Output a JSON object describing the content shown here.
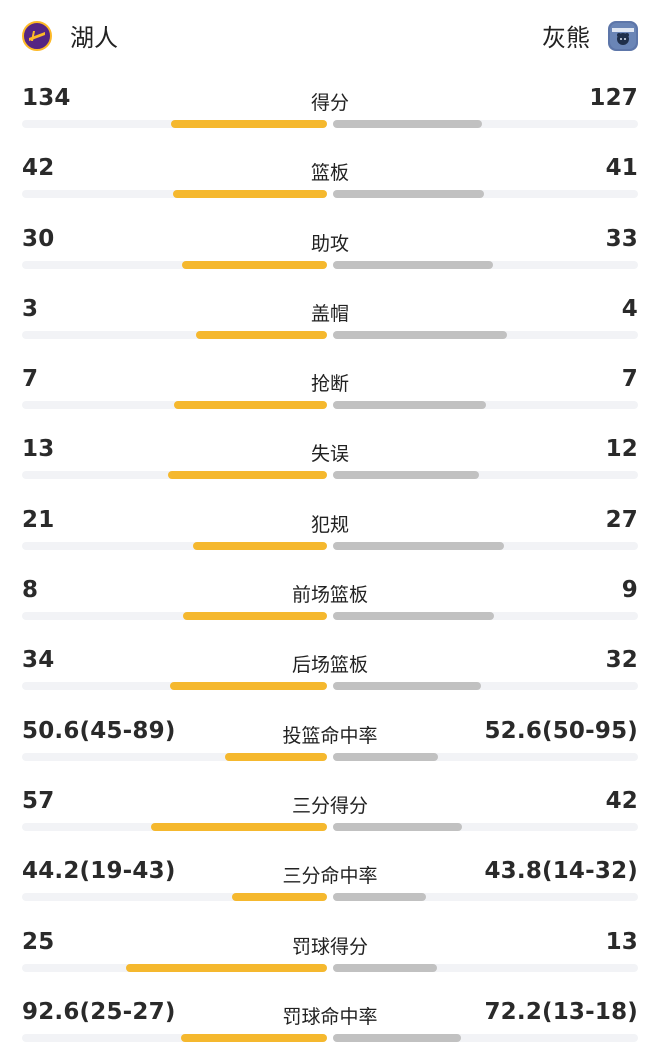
{
  "header": {
    "home": {
      "name": "湖人",
      "logo_icon": "lakers-logo-icon",
      "color": "#552583"
    },
    "away": {
      "name": "灰熊",
      "logo_icon": "grizzlies-logo-icon",
      "color": "#5d76a9"
    }
  },
  "colors": {
    "home_bar": "#f5b82e",
    "away_bar": "#c1c1c1",
    "track": "#f2f3f6"
  },
  "stats": [
    {
      "label": "得分",
      "home": "134",
      "away": "127",
      "home_fill": 0.51,
      "away_fill": 0.49
    },
    {
      "label": "篮板",
      "home": "42",
      "away": "41",
      "home_fill": 0.505,
      "away_fill": 0.495
    },
    {
      "label": "助攻",
      "home": "30",
      "away": "33",
      "home_fill": 0.476,
      "away_fill": 0.524
    },
    {
      "label": "盖帽",
      "home": "3",
      "away": "4",
      "home_fill": 0.429,
      "away_fill": 0.571
    },
    {
      "label": "抢断",
      "home": "7",
      "away": "7",
      "home_fill": 0.5,
      "away_fill": 0.5
    },
    {
      "label": "失误",
      "home": "13",
      "away": "12",
      "home_fill": 0.52,
      "away_fill": 0.48
    },
    {
      "label": "犯规",
      "home": "21",
      "away": "27",
      "home_fill": 0.438,
      "away_fill": 0.562
    },
    {
      "label": "前场篮板",
      "home": "8",
      "away": "9",
      "home_fill": 0.471,
      "away_fill": 0.529
    },
    {
      "label": "后场篮板",
      "home": "34",
      "away": "32",
      "home_fill": 0.515,
      "away_fill": 0.485
    },
    {
      "label": "投篮命中率",
      "home": "50.6(45-89)",
      "away": "52.6(50-95)",
      "home_fill": 0.335,
      "away_fill": 0.345
    },
    {
      "label": "三分得分",
      "home": "57",
      "away": "42",
      "home_fill": 0.576,
      "away_fill": 0.424
    },
    {
      "label": "三分命中率",
      "home": "44.2(19-43)",
      "away": "43.8(14-32)",
      "home_fill": 0.31,
      "away_fill": 0.305
    },
    {
      "label": "罚球得分",
      "home": "25",
      "away": "13",
      "home_fill": 0.658,
      "away_fill": 0.342
    },
    {
      "label": "罚球命中率",
      "home": "92.6(25-27)",
      "away": "72.2(13-18)",
      "home_fill": 0.48,
      "away_fill": 0.42
    }
  ]
}
